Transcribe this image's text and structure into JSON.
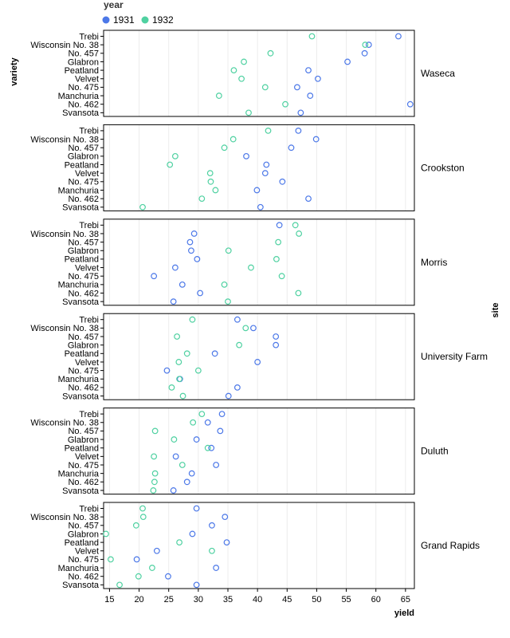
{
  "chart_data": {
    "type": "scatter",
    "subtype": "faceted-dot-plot",
    "xlabel": "yield",
    "ylabel": "variety",
    "facet_label": "site",
    "legend_title": "year",
    "legend_position": "top-left",
    "xlim": [
      14,
      66.5
    ],
    "xticks": [
      15,
      20,
      25,
      30,
      35,
      40,
      45,
      50,
      55,
      60,
      65
    ],
    "grid": "vertical",
    "varieties": [
      "Trebi",
      "Wisconsin No. 38",
      "No. 457",
      "Glabron",
      "Peatland",
      "Velvet",
      "No. 475",
      "Manchuria",
      "No. 462",
      "Svansota"
    ],
    "series": [
      {
        "name": "1931",
        "color": "#4c78e8"
      },
      {
        "name": "1932",
        "color": "#4fd1a1"
      }
    ],
    "facets": [
      {
        "site": "Waseca",
        "values": {
          "1931": [
            63.8,
            58.8,
            58.1,
            55.2,
            48.6,
            50.2,
            46.7,
            48.9,
            65.8,
            47.3
          ],
          "1932": [
            49.2,
            58.2,
            42.2,
            37.7,
            36.0,
            37.3,
            41.3,
            33.5,
            44.7,
            38.5
          ]
        }
      },
      {
        "site": "Crookston",
        "values": {
          "1931": [
            46.9,
            49.9,
            45.7,
            38.1,
            41.5,
            41.3,
            44.2,
            39.9,
            48.6,
            40.5
          ],
          "1932": [
            41.8,
            35.9,
            34.4,
            26.1,
            25.2,
            32.0,
            32.1,
            32.9,
            30.6,
            20.6
          ]
        }
      },
      {
        "site": "Morris",
        "values": {
          "1931": [
            43.7,
            29.3,
            28.6,
            28.8,
            29.8,
            26.1,
            22.5,
            27.3,
            30.3,
            25.8
          ],
          "1932": [
            46.4,
            47.0,
            43.5,
            35.1,
            43.2,
            38.9,
            44.1,
            34.4,
            46.9,
            35.0
          ]
        }
      },
      {
        "site": "University Farm",
        "values": {
          "1931": [
            36.6,
            39.3,
            43.1,
            43.1,
            32.8,
            40.0,
            24.7,
            26.9,
            36.6,
            35.1
          ],
          "1932": [
            29.0,
            38.0,
            26.4,
            36.9,
            28.1,
            26.7,
            30.0,
            26.8,
            25.5,
            27.4
          ]
        }
      },
      {
        "site": "Duluth",
        "values": {
          "1931": [
            34.0,
            31.6,
            33.7,
            29.7,
            32.2,
            26.2,
            33.0,
            28.9,
            28.1,
            25.8
          ],
          "1932": [
            30.6,
            29.1,
            22.7,
            25.9,
            31.6,
            22.5,
            27.3,
            22.7,
            22.6,
            22.4
          ]
        }
      },
      {
        "site": "Grand Rapids",
        "values": {
          "1931": [
            29.7,
            34.5,
            32.3,
            29.0,
            34.8,
            23.0,
            19.6,
            33.0,
            24.9,
            29.7
          ],
          "1932": [
            20.6,
            20.7,
            19.5,
            14.4,
            26.8,
            32.3,
            15.2,
            22.2,
            19.9,
            16.7
          ]
        }
      }
    ]
  }
}
